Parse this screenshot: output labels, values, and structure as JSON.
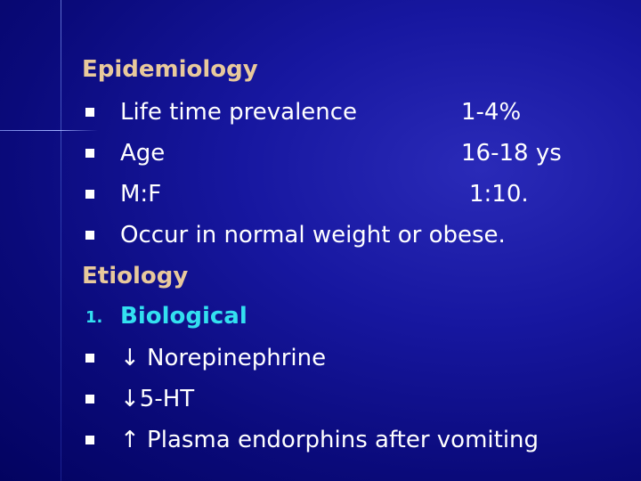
{
  "sections": [
    {
      "title": "Epidemiology",
      "items": [
        {
          "label": "Life time prevalence",
          "value": "1-4%"
        },
        {
          "label": "Age",
          "value": "16-18 ys"
        },
        {
          "label": "M:F",
          "value": "1:10."
        },
        {
          "label": "Occur in normal weight or obese."
        }
      ]
    },
    {
      "title": "Etiology",
      "subsections": [
        {
          "number": "1.",
          "title": "Biological",
          "items": [
            "↓ Norepinephrine",
            "↓5-HT",
            "↑ Plasma endorphins after vomiting"
          ]
        }
      ]
    }
  ]
}
